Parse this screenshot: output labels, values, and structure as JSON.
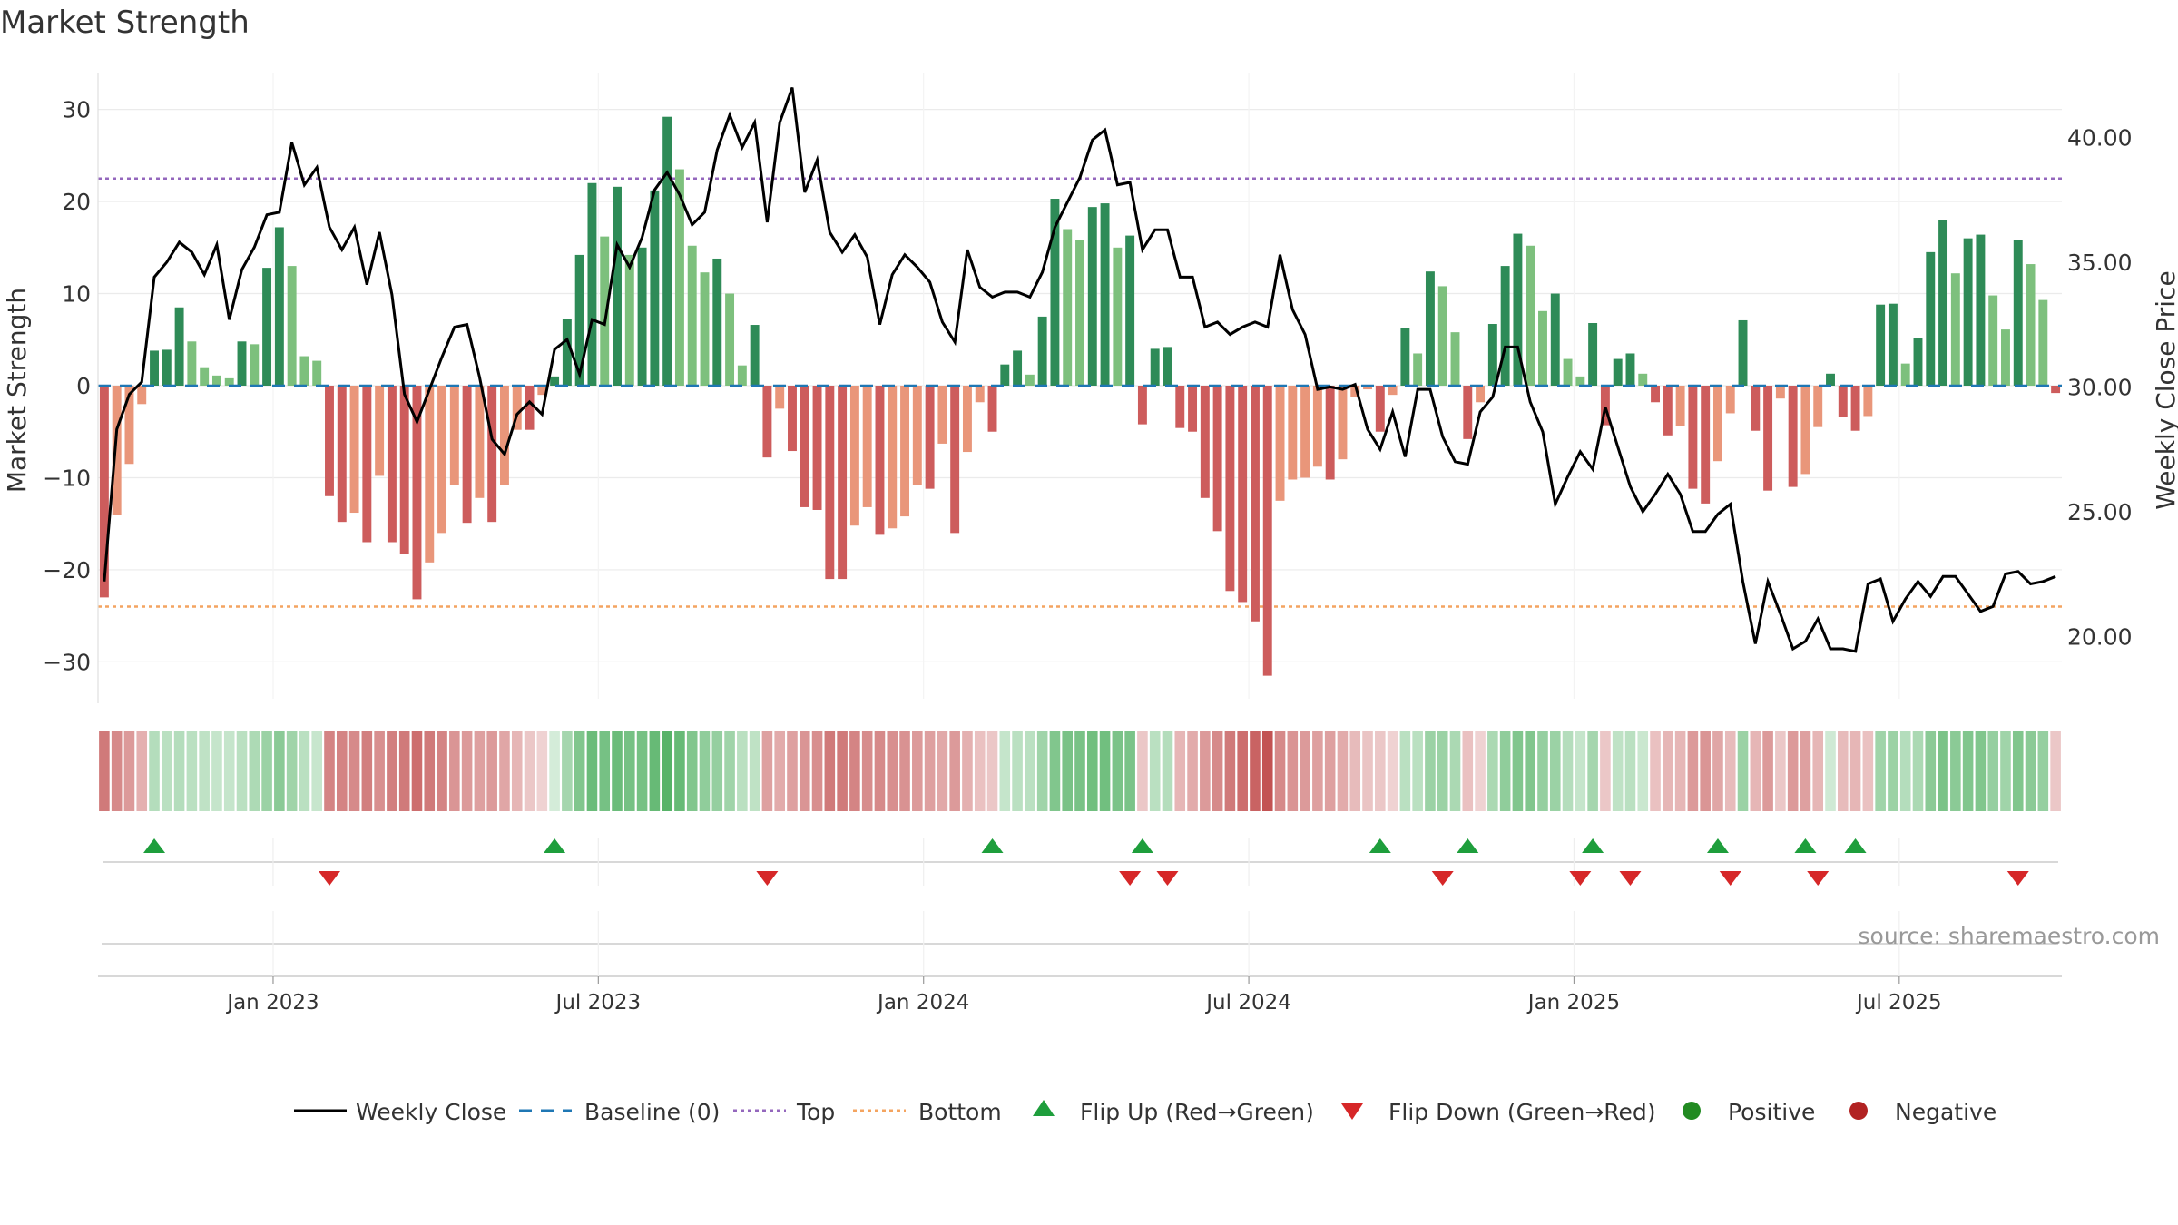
{
  "chart_data": {
    "type": "bar",
    "title": "Market Strength",
    "ylabel": "Market Strength",
    "y2label": "Weekly Close Price",
    "ylim": [
      -34,
      34
    ],
    "y2lim": [
      17.5,
      42.6
    ],
    "yticks": [
      -30,
      -20,
      -10,
      0,
      10,
      20,
      30
    ],
    "y2ticks": [
      "20.00",
      "25.00",
      "30.00",
      "35.00",
      "40.00"
    ],
    "top_line": 22.5,
    "bottom_line": -24,
    "xtick_labels": [
      "Jan 2023",
      "Jul 2023",
      "Jan 2024",
      "Jul 2024",
      "Jan 2025",
      "Jul 2025"
    ],
    "xtick_weeks": [
      13.5,
      39.5,
      65.5,
      91.5,
      117.5,
      143.5
    ],
    "strength": [
      -23,
      -14,
      -8.5,
      -2,
      3.8,
      3.9,
      8.5,
      4.8,
      2,
      1.1,
      0.8,
      4.8,
      4.5,
      12.8,
      17.2,
      13,
      3.2,
      2.7,
      -12,
      -14.8,
      -13.8,
      -17,
      -9.8,
      -17,
      -18.3,
      -23.2,
      -19.2,
      -16,
      -10.8,
      -14.9,
      -12.2,
      -14.8,
      -10.8,
      -4.8,
      -4.8,
      -1,
      1,
      7.2,
      14.2,
      22,
      16.2,
      21.6,
      14.2,
      15,
      21.2,
      29.2,
      23.5,
      15.2,
      12.3,
      13.8,
      10,
      2.2,
      6.6,
      -7.8,
      -2.5,
      -7.1,
      -13.2,
      -13.5,
      -21,
      -21,
      -15.2,
      -13.2,
      -16.2,
      -15.5,
      -14.2,
      -10.8,
      -11.2,
      -6.3,
      -16,
      -7.2,
      -1.8,
      -5,
      2.3,
      3.8,
      1.2,
      7.5,
      20.3,
      17,
      15.8,
      19.4,
      19.8,
      15,
      16.3,
      -4.2,
      4,
      4.2,
      -4.6,
      -5,
      -12.2,
      -15.8,
      -22.3,
      -23.5,
      -25.6,
      -31.5,
      -12.5,
      -10.2,
      -10,
      -8.8,
      -10.2,
      -8,
      -1.2,
      -0.4,
      -5,
      -1,
      6.3,
      3.5,
      12.4,
      10.8,
      5.8,
      -5.8,
      -1.8,
      6.7,
      13,
      16.5,
      15.2,
      8.1,
      10,
      2.9,
      1,
      6.8,
      -4.3,
      2.9,
      3.5,
      1.3,
      -1.8,
      -5.4,
      -4.4,
      -11.2,
      -12.8,
      -8.2,
      -3,
      7.1,
      -4.9,
      -11.4,
      -1.4,
      -11,
      -9.6,
      -4.5,
      1.3,
      -3.4,
      -4.9,
      -3.3,
      8.8,
      8.9,
      2.4,
      5.2,
      14.5,
      18,
      12.2,
      16,
      16.4,
      9.8,
      6.1,
      15.8,
      13.2,
      9.3,
      -0.8
    ],
    "close": [
      22.2,
      28.3,
      29.7,
      30.2,
      34.4,
      35.0,
      35.8,
      35.4,
      34.5,
      35.7,
      32.7,
      34.7,
      35.6,
      36.9,
      37.0,
      39.8,
      38.1,
      38.8,
      36.4,
      35.5,
      36.4,
      34.1,
      36.2,
      33.7,
      29.7,
      28.6,
      29.9,
      31.2,
      32.4,
      32.5,
      30.4,
      27.9,
      27.3,
      28.9,
      29.4,
      28.9,
      31.5,
      31.9,
      30.5,
      32.7,
      32.5,
      35.7,
      34.8,
      36.0,
      37.9,
      38.6,
      37.7,
      36.5,
      37.0,
      39.5,
      40.9,
      39.6,
      40.6,
      36.6,
      40.6,
      42.0,
      37.8,
      39.1,
      36.2,
      35.4,
      36.1,
      35.2,
      32.5,
      34.5,
      35.3,
      34.8,
      34.2,
      32.6,
      31.8,
      35.5,
      34.0,
      33.6,
      33.8,
      33.8,
      33.6,
      34.6,
      36.4,
      37.4,
      38.4,
      39.9,
      40.3,
      38.1,
      38.2,
      35.5,
      36.3,
      36.3,
      34.4,
      34.4,
      32.4,
      32.6,
      32.1,
      32.4,
      32.6,
      32.4,
      35.3,
      33.1,
      32.1,
      29.9,
      30.0,
      29.9,
      30.1,
      28.3,
      27.5,
      29.0,
      27.2,
      29.9,
      29.9,
      28.0,
      27.0,
      26.9,
      29.0,
      29.6,
      31.6,
      31.6,
      29.4,
      28.2,
      25.3,
      26.4,
      27.4,
      26.7,
      29.2,
      27.6,
      26.0,
      25.0,
      25.7,
      26.5,
      25.7,
      24.2,
      24.2,
      24.9,
      25.3,
      22.2,
      19.7,
      22.2,
      20.9,
      19.5,
      19.8,
      20.7,
      19.5,
      19.5,
      19.4,
      22.1,
      22.3,
      20.6,
      21.5,
      22.2,
      21.6,
      22.4,
      22.4,
      21.7,
      21.0,
      21.2,
      22.5,
      22.6,
      22.1,
      22.2,
      22.4
    ],
    "strip_intensity": [
      -0.42,
      -0.36,
      -0.3,
      -0.22,
      0.22,
      0.2,
      0.22,
      0.2,
      0.18,
      0.16,
      0.16,
      0.2,
      0.25,
      0.32,
      0.38,
      0.3,
      0.2,
      0.15,
      -0.38,
      -0.38,
      -0.36,
      -0.4,
      -0.34,
      -0.4,
      -0.42,
      -0.46,
      -0.42,
      -0.38,
      -0.32,
      -0.3,
      -0.28,
      -0.3,
      -0.26,
      -0.2,
      -0.14,
      -0.1,
      0.1,
      0.28,
      0.42,
      0.5,
      0.46,
      0.5,
      0.46,
      0.46,
      0.52,
      0.58,
      0.52,
      0.42,
      0.36,
      0.34,
      0.3,
      0.2,
      0.18,
      -0.28,
      -0.24,
      -0.28,
      -0.32,
      -0.34,
      -0.42,
      -0.42,
      -0.38,
      -0.35,
      -0.36,
      -0.34,
      -0.33,
      -0.3,
      -0.28,
      -0.25,
      -0.3,
      -0.22,
      -0.16,
      -0.14,
      0.16,
      0.2,
      0.2,
      0.3,
      0.42,
      0.45,
      0.45,
      0.48,
      0.48,
      0.44,
      0.44,
      -0.14,
      0.2,
      0.22,
      -0.2,
      -0.24,
      -0.3,
      -0.36,
      -0.42,
      -0.46,
      -0.5,
      -0.56,
      -0.36,
      -0.32,
      -0.3,
      -0.28,
      -0.28,
      -0.24,
      -0.18,
      -0.15,
      -0.14,
      -0.1,
      0.2,
      0.2,
      0.32,
      0.32,
      0.26,
      -0.16,
      -0.1,
      0.26,
      0.36,
      0.42,
      0.42,
      0.34,
      0.32,
      0.22,
      0.16,
      0.28,
      -0.14,
      0.18,
      0.2,
      0.14,
      -0.16,
      -0.2,
      -0.2,
      -0.3,
      -0.32,
      -0.26,
      -0.18,
      0.32,
      -0.2,
      -0.3,
      -0.14,
      -0.3,
      -0.28,
      -0.2,
      0.12,
      -0.18,
      -0.2,
      -0.16,
      0.3,
      0.32,
      0.22,
      0.26,
      0.38,
      0.44,
      0.38,
      0.42,
      0.42,
      0.34,
      0.3,
      0.42,
      0.38,
      0.34,
      -0.14
    ],
    "flip_up_weeks": [
      4,
      36,
      71,
      83,
      102,
      109,
      119,
      129,
      136,
      140
    ],
    "flip_down_weeks": [
      18,
      53,
      82,
      85,
      107,
      118,
      122,
      130,
      137,
      153
    ],
    "legend": [
      "Weekly Close",
      "Baseline (0)",
      "Top",
      "Bottom",
      "Flip Up (Red→Green)",
      "Flip Down (Green→Red)",
      "Positive",
      "Negative"
    ],
    "legend_placement": "bottom-center",
    "source": "source: sharemaestro.com",
    "colors": {
      "strong_positive": "#2e8b57",
      "weak_positive": "#7dc07d",
      "strong_negative": "#cd5c5c",
      "weak_negative": "#e9967a",
      "close_line": "#000000",
      "baseline": "#1f77b4",
      "top": "#9467bd",
      "bottom": "#ff7f0e",
      "flip_up": "#1e9e3c",
      "flip_down": "#d62728",
      "positive_marker": "#228b22",
      "negative_marker": "#b22222"
    }
  }
}
